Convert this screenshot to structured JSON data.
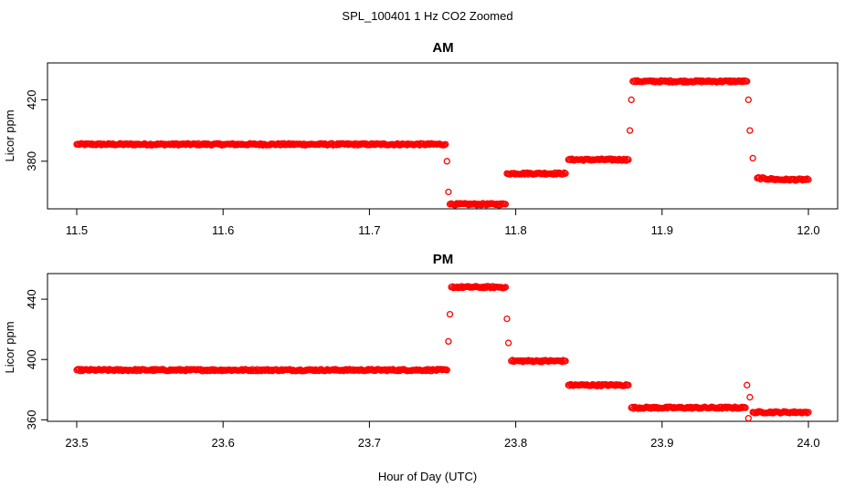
{
  "figure": {
    "title": "SPL_100401  1 Hz CO2 Zoomed",
    "xlabel": "Hour of Day (UTC)"
  },
  "chart_data": [
    {
      "type": "scatter",
      "title": "AM",
      "ylabel": "Licor ppm",
      "xlim": [
        11.5,
        12.0
      ],
      "ylim": [
        349,
        444
      ],
      "x_ticks": [
        "11.5",
        "11.6",
        "11.7",
        "11.8",
        "11.9",
        "12.0"
      ],
      "y_ticks": [
        "380",
        "420"
      ],
      "y_tick_values": [
        380,
        420
      ],
      "marker_color": "#ff0000",
      "series": [
        {
          "values": [
            {
              "x": 11.5,
              "y": 391
            },
            {
              "x": 11.6,
              "y": 391
            },
            {
              "x": 11.7,
              "y": 391
            },
            {
              "x": 11.752,
              "y": 391
            },
            {
              "x": 11.753,
              "y": 380
            },
            {
              "x": 11.754,
              "y": 360
            },
            {
              "x": 11.755,
              "y": 352
            },
            {
              "x": 11.775,
              "y": 352
            },
            {
              "x": 11.793,
              "y": 352
            },
            {
              "x": 11.794,
              "y": 372
            },
            {
              "x": 11.815,
              "y": 372
            },
            {
              "x": 11.834,
              "y": 372
            },
            {
              "x": 11.836,
              "y": 381
            },
            {
              "x": 11.855,
              "y": 381
            },
            {
              "x": 11.877,
              "y": 381
            },
            {
              "x": 11.878,
              "y": 400
            },
            {
              "x": 11.879,
              "y": 420
            },
            {
              "x": 11.88,
              "y": 432
            },
            {
              "x": 11.92,
              "y": 432
            },
            {
              "x": 11.958,
              "y": 432
            },
            {
              "x": 11.959,
              "y": 420
            },
            {
              "x": 11.96,
              "y": 400
            },
            {
              "x": 11.962,
              "y": 382
            },
            {
              "x": 11.965,
              "y": 369
            },
            {
              "x": 11.98,
              "y": 368
            },
            {
              "x": 12.0,
              "y": 368
            }
          ]
        }
      ]
    },
    {
      "type": "scatter",
      "title": "PM",
      "ylabel": "Licor ppm",
      "xlim": [
        23.5,
        24.0
      ],
      "ylim": [
        359,
        457
      ],
      "x_ticks": [
        "23.5",
        "23.6",
        "23.7",
        "23.8",
        "23.9",
        "24.0"
      ],
      "y_ticks": [
        "360",
        "400",
        "440"
      ],
      "y_tick_values": [
        360,
        400,
        440
      ],
      "marker_color": "#ff0000",
      "series": [
        {
          "values": [
            {
              "x": 23.5,
              "y": 393
            },
            {
              "x": 23.6,
              "y": 393
            },
            {
              "x": 23.7,
              "y": 393
            },
            {
              "x": 23.753,
              "y": 393
            },
            {
              "x": 23.754,
              "y": 412
            },
            {
              "x": 23.755,
              "y": 430
            },
            {
              "x": 23.756,
              "y": 448
            },
            {
              "x": 23.775,
              "y": 448
            },
            {
              "x": 23.793,
              "y": 448
            },
            {
              "x": 23.794,
              "y": 427
            },
            {
              "x": 23.795,
              "y": 411
            },
            {
              "x": 23.797,
              "y": 399
            },
            {
              "x": 23.815,
              "y": 399
            },
            {
              "x": 23.834,
              "y": 399
            },
            {
              "x": 23.836,
              "y": 383
            },
            {
              "x": 23.855,
              "y": 383
            },
            {
              "x": 23.877,
              "y": 383
            },
            {
              "x": 23.879,
              "y": 368
            },
            {
              "x": 23.91,
              "y": 368
            },
            {
              "x": 23.957,
              "y": 368
            },
            {
              "x": 23.958,
              "y": 383
            },
            {
              "x": 23.959,
              "y": 361
            },
            {
              "x": 23.96,
              "y": 375
            },
            {
              "x": 23.962,
              "y": 365
            },
            {
              "x": 23.98,
              "y": 365
            },
            {
              "x": 24.0,
              "y": 365
            }
          ]
        }
      ]
    }
  ]
}
